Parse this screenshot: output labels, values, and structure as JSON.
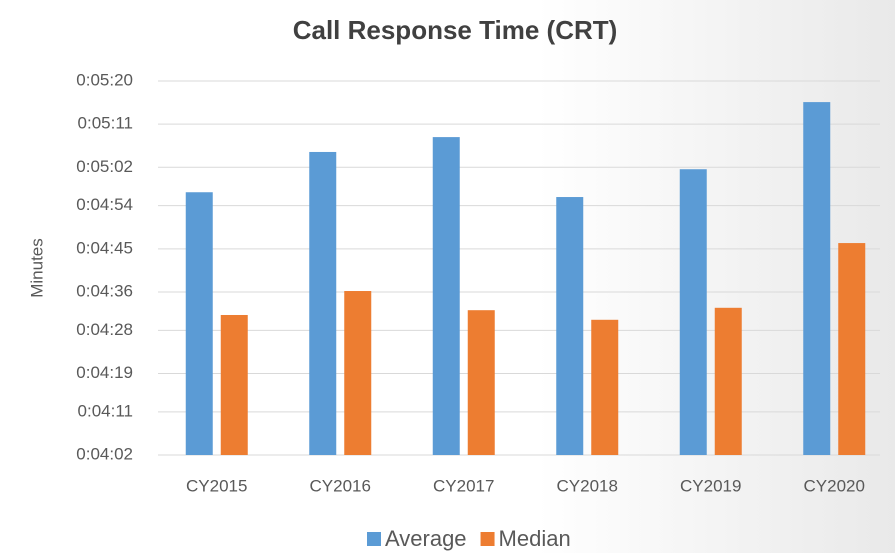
{
  "chart_data": {
    "type": "bar",
    "title": "Call Response Time (CRT)",
    "y_label": "Minutes",
    "categories": [
      "CY2015",
      "CY2016",
      "CY2017",
      "CY2018",
      "CY2019",
      "CY2020"
    ],
    "series": [
      {
        "name": "Average",
        "color": "#5b9bd5",
        "values": [
          296.8,
          305.2,
          308.3,
          295.8,
          301.6,
          315.6
        ]
      },
      {
        "name": "Median",
        "color": "#ed7d31",
        "values": [
          271.2,
          276.2,
          272.2,
          270.2,
          272.7,
          286.2
        ]
      }
    ],
    "ylim": [
      242,
      320
    ],
    "yticks": [
      {
        "value": 242,
        "label": "0:04:02"
      },
      {
        "value": 251,
        "label": "0:04:11"
      },
      {
        "value": 259,
        "label": "0:04:19"
      },
      {
        "value": 268,
        "label": "0:04:28"
      },
      {
        "value": 276,
        "label": "0:04:36"
      },
      {
        "value": 285,
        "label": "0:04:45"
      },
      {
        "value": 294,
        "label": "0:04:54"
      },
      {
        "value": 302,
        "label": "0:05:02"
      },
      {
        "value": 311,
        "label": "0:05:11"
      },
      {
        "value": 320,
        "label": "0:05:20"
      }
    ],
    "grid": true,
    "legend": "bottom"
  }
}
